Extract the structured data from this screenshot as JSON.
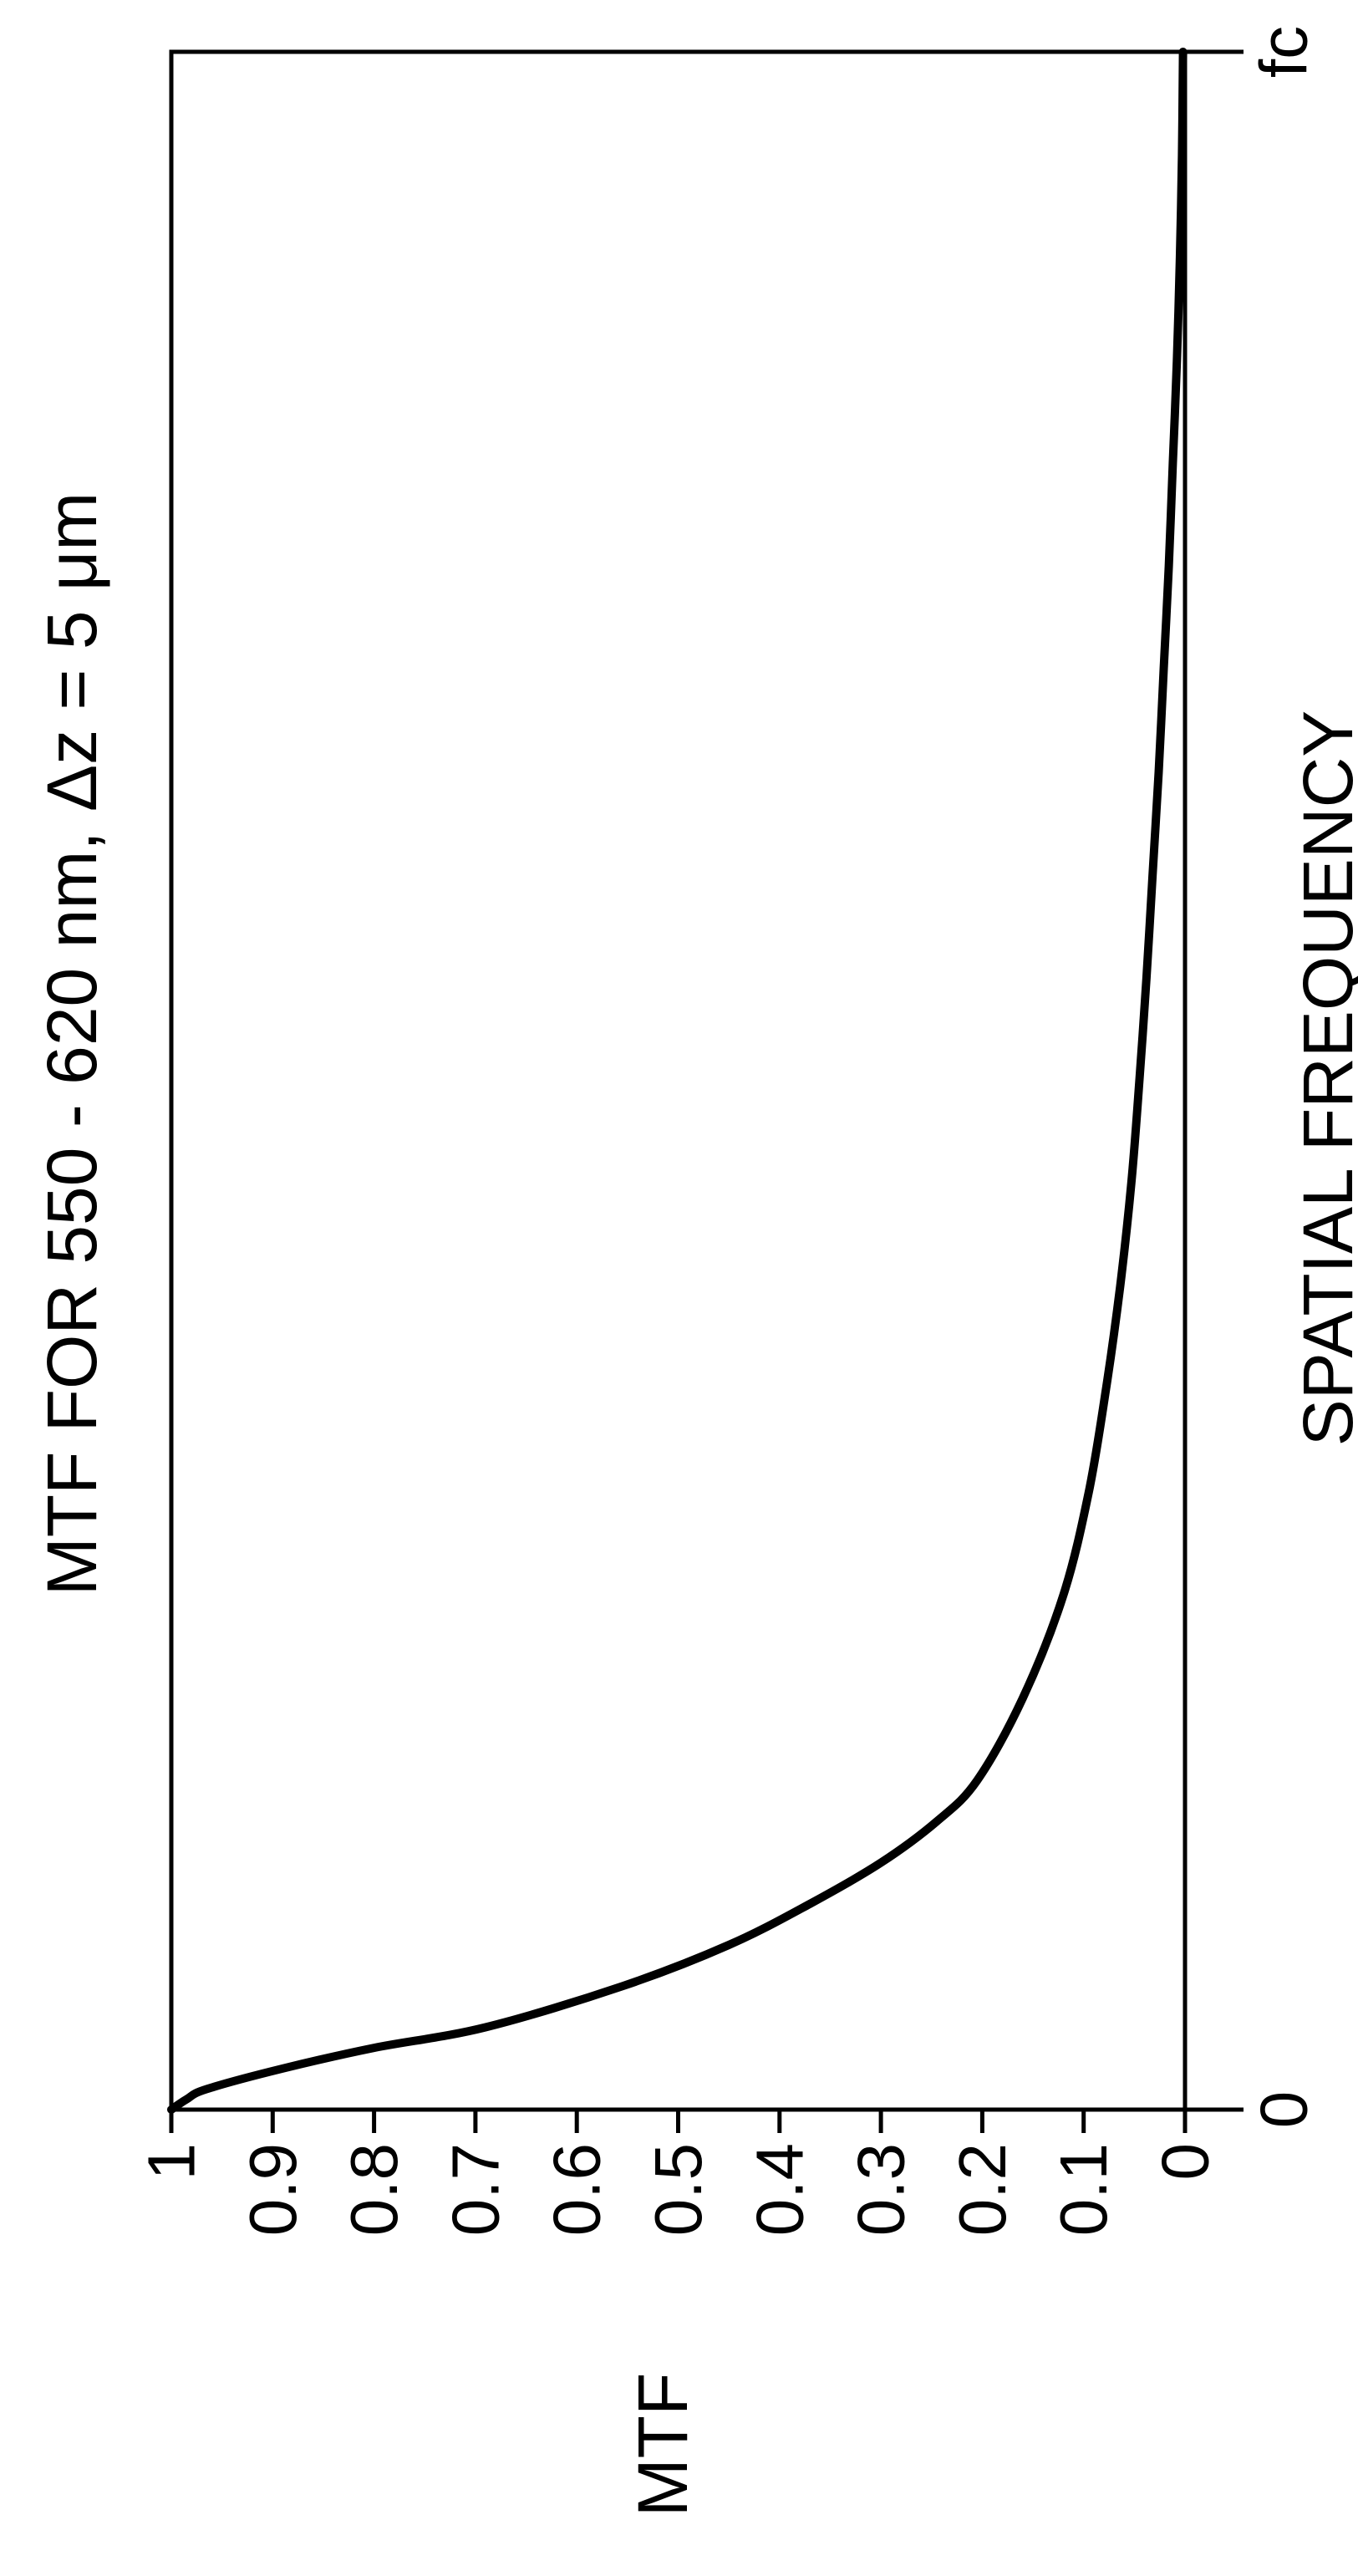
{
  "chart_data": {
    "type": "line",
    "orientation": "rotated 90 degrees counter-clockwise",
    "title": "MTF FOR 550 - 620 nm, Δz = 5 μm",
    "xlabel": "SPATIAL FREQUENCY",
    "ylabel": "MTF",
    "xlim": [
      0,
      1
    ],
    "ylim": [
      0,
      1
    ],
    "x_ticks": [
      {
        "value": 0,
        "label": "0"
      },
      {
        "value": 1,
        "label": "fc"
      }
    ],
    "y_ticks": [
      {
        "value": 0,
        "label": "0"
      },
      {
        "value": 0.1,
        "label": "0.1"
      },
      {
        "value": 0.2,
        "label": "0.2"
      },
      {
        "value": 0.3,
        "label": "0.3"
      },
      {
        "value": 0.4,
        "label": "0.4"
      },
      {
        "value": 0.5,
        "label": "0.5"
      },
      {
        "value": 0.6,
        "label": "0.6"
      },
      {
        "value": 0.7,
        "label": "0.7"
      },
      {
        "value": 0.8,
        "label": "0.8"
      },
      {
        "value": 0.9,
        "label": "0.9"
      },
      {
        "value": 1,
        "label": "1"
      }
    ],
    "grid": false,
    "series": [
      {
        "color": "#000000",
        "x": [
          0,
          0.005,
          0.01,
          0.02,
          0.03,
          0.04,
          0.06,
          0.08,
          0.1,
          0.12,
          0.14,
          0.16,
          0.2,
          0.25,
          0.3,
          0.35,
          0.4,
          0.45,
          0.5,
          0.55,
          0.6,
          0.65,
          0.7,
          0.75,
          0.8,
          0.85,
          0.9,
          0.95,
          1.0
        ],
        "y": [
          1.0,
          0.985,
          0.965,
          0.89,
          0.8,
          0.69,
          0.555,
          0.45,
          0.37,
          0.3,
          0.245,
          0.205,
          0.16,
          0.12,
          0.095,
          0.078,
          0.064,
          0.053,
          0.045,
          0.038,
          0.032,
          0.026,
          0.021,
          0.016,
          0.012,
          0.008,
          0.005,
          0.003,
          0.002
        ]
      }
    ]
  }
}
